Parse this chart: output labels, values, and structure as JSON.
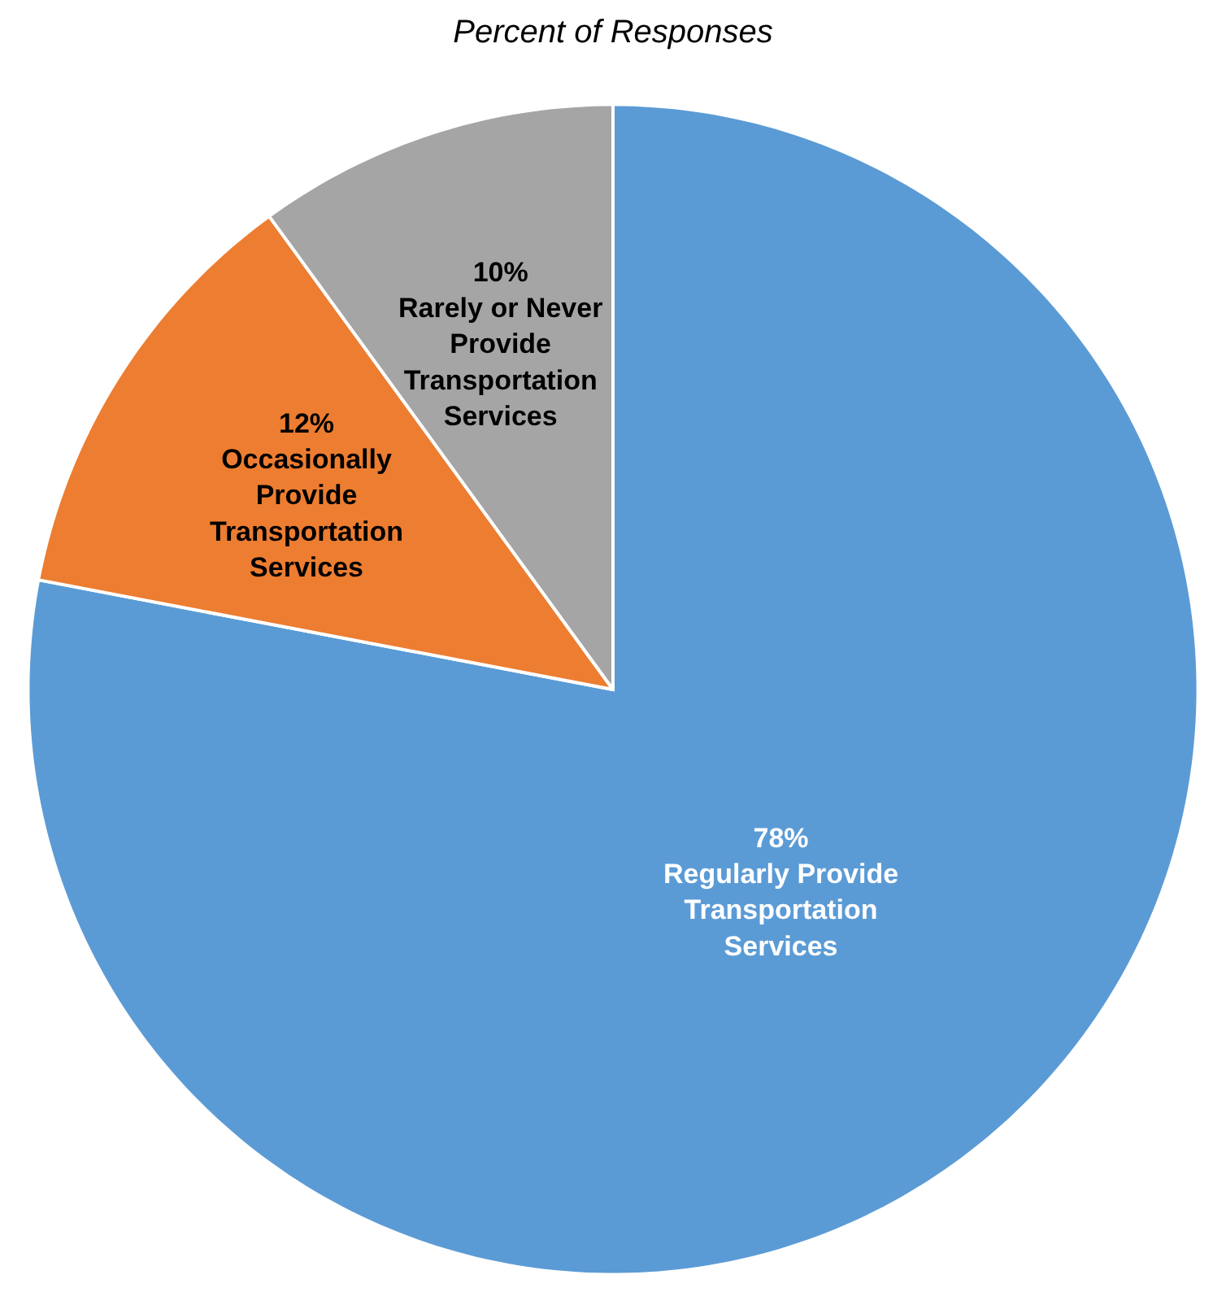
{
  "chart_data": {
    "type": "pie",
    "title": "Percent of Responses",
    "categories": [
      "Regularly Provide Transportation Services",
      "Occasionally Provide Transportation Services",
      "Rarely or Never Provide Transportation Services"
    ],
    "values": [
      78,
      12,
      10
    ],
    "value_labels": [
      "78%",
      "12%",
      "10%"
    ],
    "colors": [
      "#5b9bd5",
      "#ed7d31",
      "#a5a5a5"
    ],
    "legend": false
  }
}
